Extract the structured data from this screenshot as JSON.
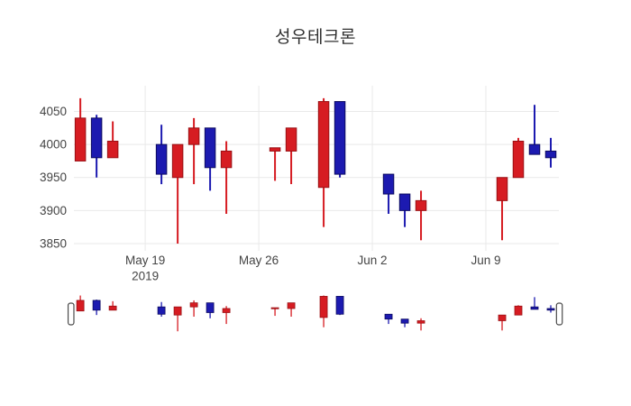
{
  "chart_data": {
    "type": "candlestick",
    "title": "성우테크론",
    "xlabel": "",
    "ylabel": "",
    "grid": true,
    "legend": null,
    "colors": {
      "up_fill": "#d61c22",
      "up_line": "#991014",
      "down_fill": "#1c1ab0",
      "down_line": "#0c0b60",
      "grid_line": "#e9e9e9",
      "tick_text": "#444444",
      "title_text": "#303030",
      "slider_handle_fill": "#ffffff",
      "slider_handle_border": "#4a4a4a",
      "background": "#ffffff"
    },
    "y_axis": {
      "ticks": [
        3850,
        3900,
        3950,
        4000,
        4050
      ],
      "range": [
        3839,
        4089
      ]
    },
    "x_axis": {
      "ticks": [
        {
          "label": "May 19",
          "sublabel": "2019",
          "date": "2019-05-19"
        },
        {
          "label": "May 26",
          "sublabel": "",
          "date": "2019-05-26"
        },
        {
          "label": "Jun 2",
          "sublabel": "",
          "date": "2019-06-02"
        },
        {
          "label": "Jun 9",
          "sublabel": "",
          "date": "2019-06-09"
        }
      ],
      "range": [
        "2019-05-14T14:30:00Z",
        "2019-06-13T12:00:00Z"
      ]
    },
    "candles": [
      {
        "date": "2019-05-15",
        "open": 3975,
        "high": 4070,
        "low": 3975,
        "close": 4040
      },
      {
        "date": "2019-05-16",
        "open": 4040,
        "high": 4045,
        "low": 3950,
        "close": 3980
      },
      {
        "date": "2019-05-17",
        "open": 3980,
        "high": 4035,
        "low": 3980,
        "close": 4005
      },
      {
        "date": "2019-05-20",
        "open": 4000,
        "high": 4030,
        "low": 3940,
        "close": 3955
      },
      {
        "date": "2019-05-21",
        "open": 3950,
        "high": 4000,
        "low": 3850,
        "close": 4000
      },
      {
        "date": "2019-05-22",
        "open": 4000,
        "high": 4040,
        "low": 3940,
        "close": 4025
      },
      {
        "date": "2019-05-23",
        "open": 4025,
        "high": 4025,
        "low": 3930,
        "close": 3965
      },
      {
        "date": "2019-05-24",
        "open": 3965,
        "high": 4005,
        "low": 3895,
        "close": 3990
      },
      {
        "date": "2019-05-27",
        "open": 3990,
        "high": 3995,
        "low": 3945,
        "close": 3995
      },
      {
        "date": "2019-05-28",
        "open": 3990,
        "high": 4025,
        "low": 3940,
        "close": 4025
      },
      {
        "date": "2019-05-30",
        "open": 3935,
        "high": 4070,
        "low": 3875,
        "close": 4065
      },
      {
        "date": "2019-05-31",
        "open": 4065,
        "high": 4065,
        "low": 3950,
        "close": 3955
      },
      {
        "date": "2019-06-03",
        "open": 3955,
        "high": 3955,
        "low": 3895,
        "close": 3925
      },
      {
        "date": "2019-06-04",
        "open": 3925,
        "high": 3925,
        "low": 3875,
        "close": 3900
      },
      {
        "date": "2019-06-05",
        "open": 3900,
        "high": 3930,
        "low": 3855,
        "close": 3915
      },
      {
        "date": "2019-06-10",
        "open": 3915,
        "high": 3950,
        "low": 3855,
        "close": 3950
      },
      {
        "date": "2019-06-11",
        "open": 3950,
        "high": 4010,
        "low": 3950,
        "close": 4005
      },
      {
        "date": "2019-06-12",
        "open": 4000,
        "high": 4060,
        "low": 3985,
        "close": 3985
      },
      {
        "date": "2019-06-13",
        "open": 3990,
        "high": 4010,
        "low": 3965,
        "close": 3980
      }
    ],
    "rangeslider": {
      "visible": true,
      "value_range": [
        3840,
        4073
      ],
      "handle_left_frac": -0.006,
      "handle_right_frac": 1.001
    }
  }
}
